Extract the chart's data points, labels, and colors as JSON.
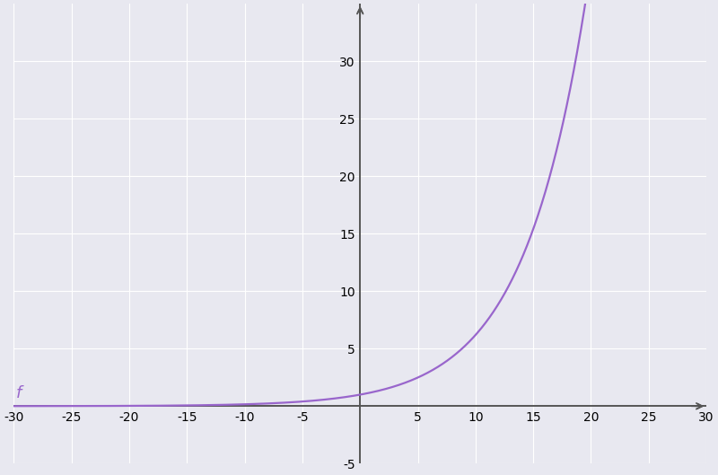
{
  "xlim": [
    -30,
    30
  ],
  "ylim": [
    -5,
    35
  ],
  "xticks": [
    -30,
    -25,
    -20,
    -15,
    -10,
    -5,
    5,
    10,
    15,
    20,
    25,
    30
  ],
  "yticks": [
    -5,
    5,
    10,
    15,
    20,
    25,
    30
  ],
  "curve_color": "#9966cc",
  "curve_linewidth": 1.6,
  "base": 1.2,
  "x_start": -30,
  "x_end": 20.2,
  "label": "f",
  "label_color": "#9966cc",
  "background_color": "#e8e8f0",
  "grid_color": "#ffffff",
  "axis_color": "#555555",
  "tick_label_color": "#444444",
  "font_size": 12,
  "label_font_size": 13,
  "arrow_color": "#555555"
}
